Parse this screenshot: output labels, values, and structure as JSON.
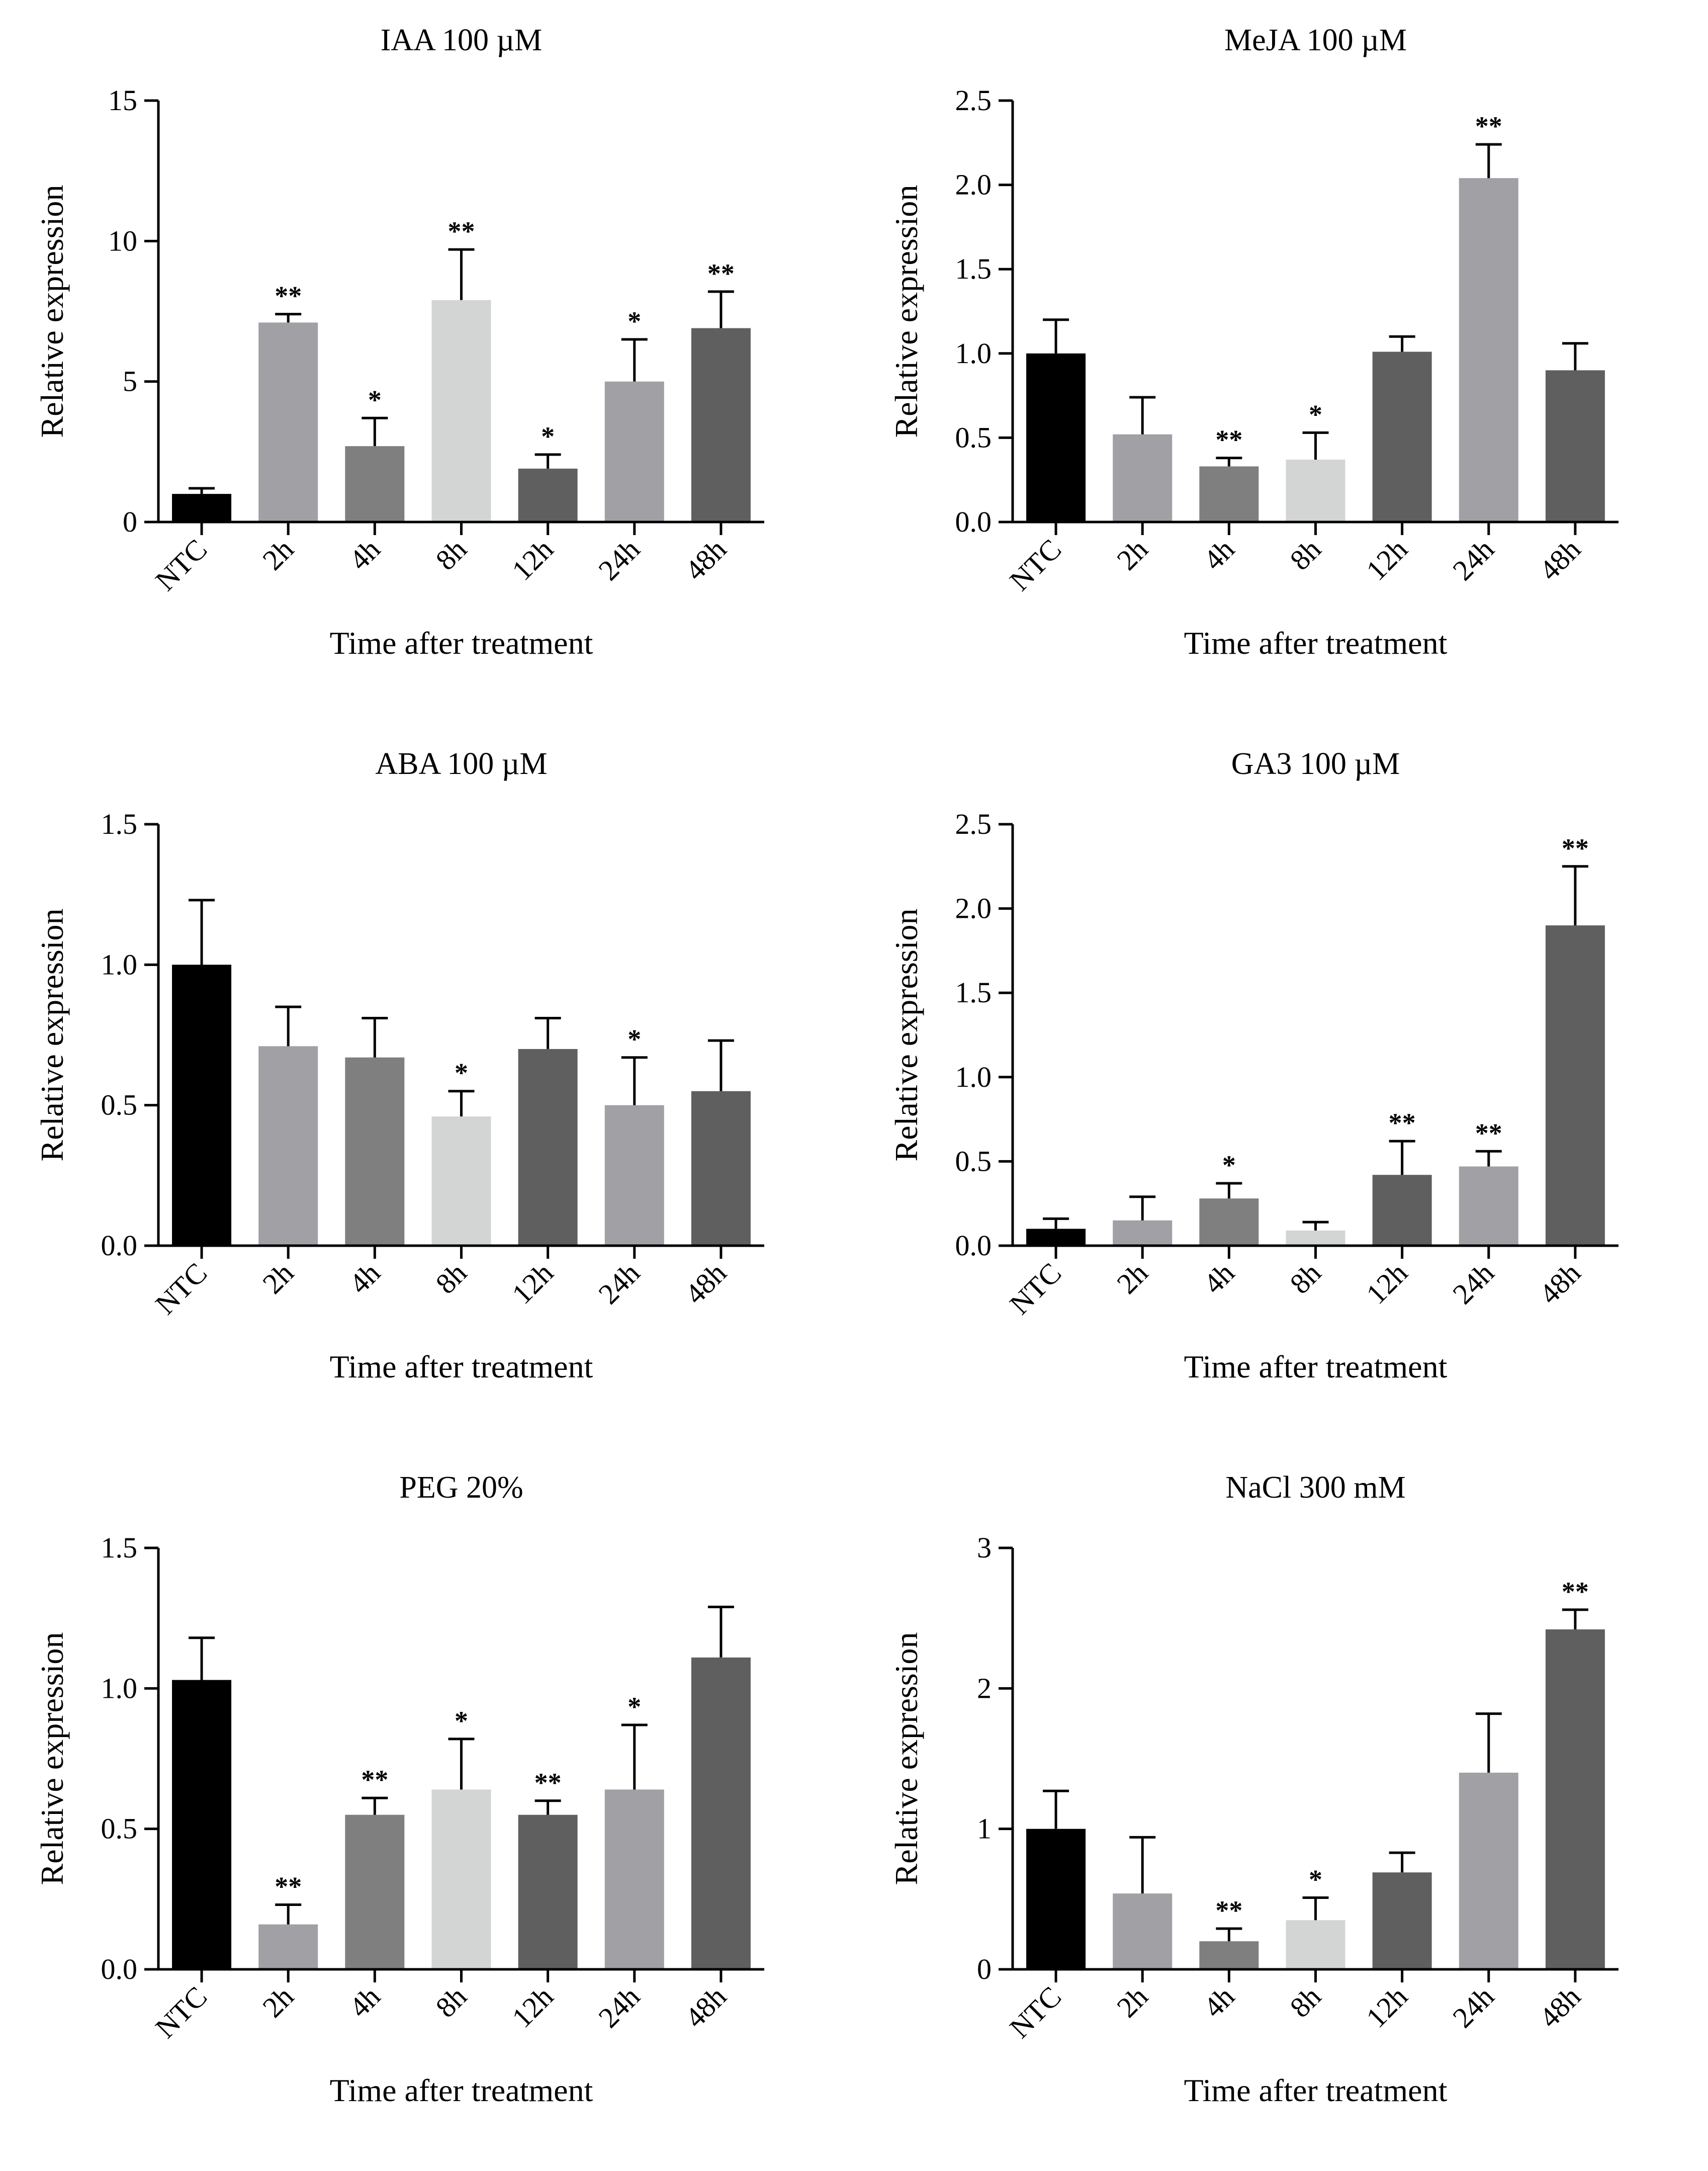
{
  "chart_data": [
    {
      "type": "bar",
      "title": "IAA 100 µM",
      "xlabel": "Time after treatment",
      "ylabel": "Relative expression",
      "categories": [
        "NTC",
        "2h",
        "4h",
        "8h",
        "12h",
        "24h",
        "48h"
      ],
      "values": [
        1.0,
        7.1,
        2.7,
        7.9,
        1.9,
        5.0,
        6.9
      ],
      "errors": [
        0.2,
        0.3,
        1.0,
        1.8,
        0.5,
        1.5,
        1.3
      ],
      "significance": [
        "",
        "**",
        "*",
        "**",
        "*",
        "*",
        "**"
      ],
      "colors": [
        "#000000",
        "#a0a0a5",
        "#7f7f7f",
        "#d3d4d4",
        "#5f5f5f",
        "#a0a0a5",
        "#5f5f5f"
      ],
      "ylim": [
        0,
        15
      ],
      "yticks": [
        "0",
        "5",
        "10",
        "15"
      ],
      "grid": false
    },
    {
      "type": "bar",
      "title": "MeJA 100 µM",
      "xlabel": "Time after treatment",
      "ylabel": "Relative expression",
      "categories": [
        "NTC",
        "2h",
        "4h",
        "8h",
        "12h",
        "24h",
        "48h"
      ],
      "values": [
        1.0,
        0.52,
        0.33,
        0.37,
        1.01,
        2.04,
        0.9
      ],
      "errors": [
        0.2,
        0.22,
        0.05,
        0.16,
        0.09,
        0.2,
        0.16
      ],
      "significance": [
        "",
        "",
        "**",
        "*",
        "",
        "**",
        ""
      ],
      "colors": [
        "#000000",
        "#a0a0a5",
        "#7f7f7f",
        "#d3d4d4",
        "#5f5f5f",
        "#a0a0a5",
        "#5f5f5f"
      ],
      "ylim": [
        0,
        2.5
      ],
      "yticks": [
        "0.0",
        "0.5",
        "1.0",
        "1.5",
        "2.0",
        "2.5"
      ],
      "grid": false
    },
    {
      "type": "bar",
      "title": "ABA 100 µM",
      "xlabel": "Time after treatment",
      "ylabel": "Relative expression",
      "categories": [
        "NTC",
        "2h",
        "4h",
        "8h",
        "12h",
        "24h",
        "48h"
      ],
      "values": [
        1.0,
        0.71,
        0.67,
        0.46,
        0.7,
        0.5,
        0.55
      ],
      "errors": [
        0.23,
        0.14,
        0.14,
        0.09,
        0.11,
        0.17,
        0.18
      ],
      "significance": [
        "",
        "",
        "",
        "*",
        "",
        "*",
        ""
      ],
      "colors": [
        "#000000",
        "#a0a0a5",
        "#7f7f7f",
        "#d3d4d4",
        "#5f5f5f",
        "#a0a0a5",
        "#5f5f5f"
      ],
      "ylim": [
        0,
        1.5
      ],
      "yticks": [
        "0.0",
        "0.5",
        "1.0",
        "1.5"
      ],
      "grid": false
    },
    {
      "type": "bar",
      "title": "GA3 100 µM",
      "xlabel": "Time after treatment",
      "ylabel": "Relative expression",
      "categories": [
        "NTC",
        "2h",
        "4h",
        "8h",
        "12h",
        "24h",
        "48h"
      ],
      "values": [
        0.1,
        0.15,
        0.28,
        0.09,
        0.42,
        0.47,
        1.9
      ],
      "errors": [
        0.06,
        0.14,
        0.09,
        0.05,
        0.2,
        0.09,
        0.35
      ],
      "significance": [
        "",
        "",
        "*",
        "",
        "**",
        "**",
        "**"
      ],
      "colors": [
        "#000000",
        "#a0a0a5",
        "#7f7f7f",
        "#d3d4d4",
        "#5f5f5f",
        "#a0a0a5",
        "#5f5f5f"
      ],
      "ylim": [
        0,
        2.5
      ],
      "yticks": [
        "0.0",
        "0.5",
        "1.0",
        "1.5",
        "2.0",
        "2.5"
      ],
      "grid": false
    },
    {
      "type": "bar",
      "title": "PEG 20%",
      "xlabel": "Time after treatment",
      "ylabel": "Relative expression",
      "categories": [
        "NTC",
        "2h",
        "4h",
        "8h",
        "12h",
        "24h",
        "48h"
      ],
      "values": [
        1.03,
        0.16,
        0.55,
        0.64,
        0.55,
        0.64,
        1.11
      ],
      "errors": [
        0.15,
        0.07,
        0.06,
        0.18,
        0.05,
        0.23,
        0.18
      ],
      "significance": [
        "",
        "**",
        "**",
        "*",
        "**",
        "*",
        ""
      ],
      "colors": [
        "#000000",
        "#a0a0a5",
        "#7f7f7f",
        "#d3d4d4",
        "#5f5f5f",
        "#a0a0a5",
        "#5f5f5f"
      ],
      "ylim": [
        0,
        1.5
      ],
      "yticks": [
        "0.0",
        "0.5",
        "1.0",
        "1.5"
      ],
      "grid": false
    },
    {
      "type": "bar",
      "title": "NaCl 300 mM",
      "xlabel": "Time after treatment",
      "ylabel": "Relative expression",
      "categories": [
        "NTC",
        "2h",
        "4h",
        "8h",
        "12h",
        "24h",
        "48h"
      ],
      "values": [
        1.0,
        0.54,
        0.2,
        0.35,
        0.69,
        1.4,
        2.42
      ],
      "errors": [
        0.27,
        0.4,
        0.09,
        0.16,
        0.14,
        0.42,
        0.14
      ],
      "significance": [
        "",
        "",
        "**",
        "*",
        "",
        "",
        "**"
      ],
      "colors": [
        "#000000",
        "#a0a0a5",
        "#7f7f7f",
        "#d3d4d4",
        "#5f5f5f",
        "#a0a0a5",
        "#5f5f5f"
      ],
      "ylim": [
        0,
        3
      ],
      "yticks": [
        "0",
        "1",
        "2",
        "3"
      ],
      "grid": false
    }
  ]
}
